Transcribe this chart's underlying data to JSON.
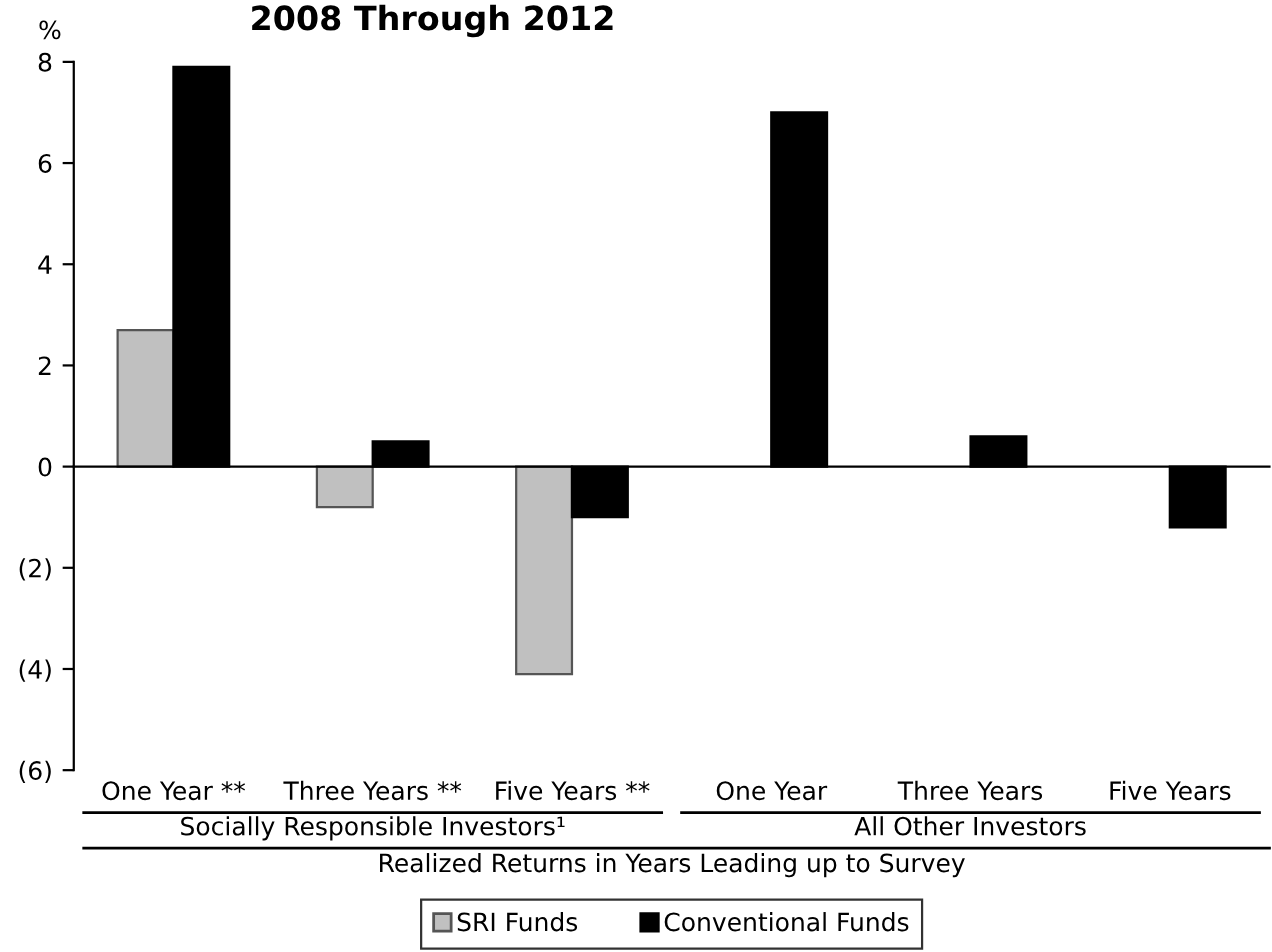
{
  "chart_data": {
    "type": "bar",
    "title": "2008 Through 2012",
    "ylabel": "%",
    "xlabel": "Realized Returns in Years Leading up to Survey",
    "categories": [
      "One Year **",
      "Three Years **",
      "Five Years **",
      "One Year",
      "Three Years",
      "Five Years"
    ],
    "series": [
      {
        "name": "SRI Funds",
        "color": "#c0c0c0",
        "values": [
          2.7,
          -0.8,
          -4.1,
          null,
          null,
          null
        ]
      },
      {
        "name": "Conventional Funds",
        "color": "#000000",
        "values": [
          7.9,
          0.5,
          -1.0,
          7.0,
          0.6,
          -1.2
        ]
      }
    ],
    "annotations": [
      "Socially Responsible Investors¹",
      "All Other Investors"
    ],
    "ylim": [
      -6,
      8
    ],
    "yticks": [
      {
        "value": -6,
        "label": "(6)"
      },
      {
        "value": -4,
        "label": "(4)"
      },
      {
        "value": -2,
        "label": "(2)"
      },
      0,
      2,
      4,
      6,
      8
    ],
    "legend": "bottom"
  }
}
